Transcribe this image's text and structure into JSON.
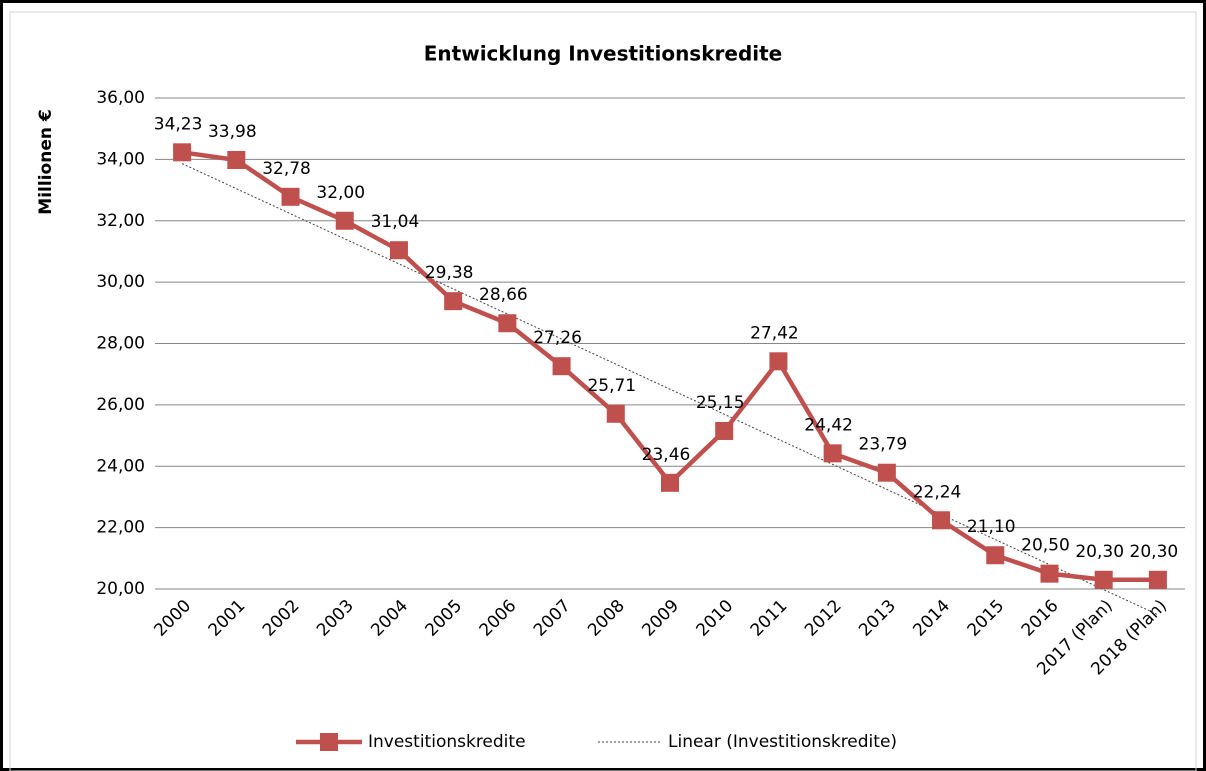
{
  "chart_data": {
    "type": "line",
    "title": "Entwicklung Investitionskredite",
    "y_label": "Millionen €",
    "categories": [
      "2000",
      "2001",
      "2002",
      "2003",
      "2004",
      "2005",
      "2006",
      "2007",
      "2008",
      "2009",
      "2010",
      "2011",
      "2012",
      "2013",
      "2014",
      "2015",
      "2016",
      "2017 (Plan)",
      "2018 (Plan)"
    ],
    "series": [
      {
        "name": "Investitionskredite",
        "color": "#c0504d",
        "marker": "square",
        "values": [
          34.23,
          33.98,
          32.78,
          32.0,
          31.04,
          29.38,
          28.66,
          27.26,
          25.71,
          23.46,
          25.15,
          27.42,
          24.42,
          23.79,
          22.24,
          21.1,
          20.5,
          20.3,
          20.3
        ],
        "value_labels": [
          "34,23",
          "33,98",
          "32,78",
          "32,00",
          "31,04",
          "29,38",
          "28,66",
          "27,26",
          "25,71",
          "23,46",
          "25,15",
          "27,42",
          "24,42",
          "23,79",
          "22,24",
          "21,10",
          "20,50",
          "20,30",
          "20,30"
        ],
        "trendline": {
          "type": "linear",
          "name": "Linear (Investitionskredite)",
          "color": "#404040"
        }
      }
    ],
    "ylim": [
      20,
      36
    ],
    "yticks": [
      {
        "value": 20,
        "label": "20,00"
      },
      {
        "value": 22,
        "label": "22,00"
      },
      {
        "value": 24,
        "label": "24,00"
      },
      {
        "value": 26,
        "label": "26,00"
      },
      {
        "value": 28,
        "label": "28,00"
      },
      {
        "value": 30,
        "label": "30,00"
      },
      {
        "value": 32,
        "label": "32,00"
      },
      {
        "value": 34,
        "label": "34,00"
      },
      {
        "value": 36,
        "label": "36,00"
      }
    ],
    "grid": true,
    "legend": "bottom"
  }
}
